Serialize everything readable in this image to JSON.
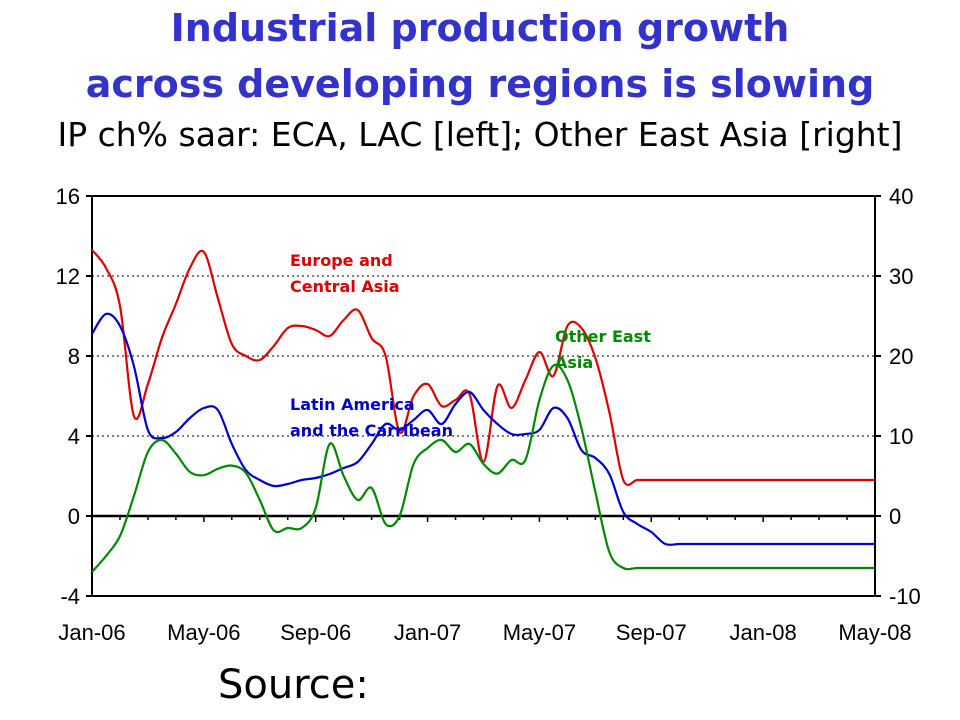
{
  "title_line1": "Industrial production growth",
  "title_line2": "across developing regions is slowing",
  "subtitle": "IP ch% saar: ECA, LAC [left]; Other East Asia [right]",
  "source": "Source:",
  "chart_data": {
    "type": "line",
    "x_ticks": [
      "Jan-06",
      "May-06",
      "Sep-06",
      "Jan-07",
      "May-07",
      "Sep-07",
      "Jan-08",
      "May-08"
    ],
    "y_left_ticks": [
      "16",
      "12",
      "8",
      "4",
      "0",
      "-4"
    ],
    "y_right_ticks": [
      "40",
      "30",
      "20",
      "10",
      "0",
      "-10"
    ],
    "y_left_range": [
      -4,
      16
    ],
    "y_right_range": [
      -10,
      40
    ],
    "grid": "horizontal dotted",
    "series": [
      {
        "name": "Europe and Central Asia",
        "label_lines": [
          "Europe and",
          "Central Asia"
        ],
        "axis": "left",
        "color": "#dd0000",
        "x": [
          0,
          0.5,
          1,
          1.5,
          2,
          2.5,
          3,
          3.5,
          4,
          4.5,
          5,
          5.5,
          6,
          6.5,
          7,
          7.5,
          8,
          8.5,
          9,
          9.5,
          10,
          10.5,
          11,
          11.5,
          12,
          12.5,
          13,
          13.5,
          14,
          14.5,
          15,
          15.5,
          16,
          16.5,
          17,
          17.5,
          18,
          18.5,
          19,
          19.5,
          20,
          20.5,
          21,
          21.5,
          22,
          22.5,
          23,
          23.5,
          24,
          24.5,
          25,
          25.5,
          26,
          26.5,
          27,
          27.5,
          28
        ],
        "y": [
          13.3,
          12.4,
          10.5,
          5.0,
          6.6,
          8.9,
          10.6,
          12.4,
          13.2,
          10.9,
          8.6,
          8.0,
          7.8,
          8.5,
          9.4,
          9.5,
          9.3,
          9.0,
          9.8,
          10.3,
          8.9,
          8.0,
          4.2,
          6.0,
          6.6,
          5.5,
          5.8,
          6.1,
          2.7,
          6.5,
          5.4,
          6.8,
          8.2,
          7.0,
          9.5,
          9.4,
          7.9,
          5.2,
          1.8,
          1.8,
          1.8,
          1.8,
          1.8,
          1.8,
          1.8,
          1.8,
          1.8,
          1.8,
          1.8,
          1.8,
          1.8,
          1.8,
          1.8,
          1.8,
          1.8,
          1.8,
          1.8
        ]
      },
      {
        "name": "Latin America and the Carribean",
        "label_lines": [
          "Latin America",
          "and the Carribean"
        ],
        "axis": "left",
        "color": "#0000cc",
        "x": [
          0,
          0.5,
          1,
          1.5,
          2,
          2.5,
          3,
          3.5,
          4,
          4.5,
          5,
          5.5,
          6,
          6.5,
          7,
          7.5,
          8,
          8.5,
          9,
          9.5,
          10,
          10.5,
          11,
          11.5,
          12,
          12.5,
          13,
          13.5,
          14,
          14.5,
          15,
          15.5,
          16,
          16.5,
          17,
          17.5,
          18,
          18.5,
          19,
          19.5,
          20,
          20.5,
          21,
          21.5,
          22,
          22.5,
          23,
          23.5,
          24,
          24.5,
          25,
          25.5,
          26,
          26.5,
          27,
          27.5,
          28
        ],
        "y": [
          9.1,
          10.1,
          9.5,
          7.5,
          4.3,
          3.9,
          4.2,
          4.9,
          5.4,
          5.3,
          3.6,
          2.3,
          1.8,
          1.5,
          1.6,
          1.8,
          1.9,
          2.1,
          2.4,
          2.7,
          3.6,
          4.6,
          4.3,
          4.8,
          5.3,
          4.6,
          5.6,
          6.2,
          5.3,
          4.6,
          4.1,
          4.1,
          4.3,
          5.4,
          4.9,
          3.3,
          2.9,
          2.1,
          0.2,
          -0.4,
          -0.8,
          -1.4,
          -1.4,
          -1.4,
          -1.4,
          -1.4,
          -1.4,
          -1.4,
          -1.4,
          -1.4,
          -1.4,
          -1.4,
          -1.4,
          -1.4,
          -1.4,
          -1.4,
          -1.4
        ]
      },
      {
        "name": "Other East Asia",
        "label_lines": [
          "Other East",
          "Asia"
        ],
        "axis": "right",
        "color": "#008800",
        "x": [
          0,
          0.5,
          1,
          1.5,
          2,
          2.5,
          3,
          3.5,
          4,
          4.5,
          5,
          5.5,
          6,
          6.5,
          7,
          7.5,
          8,
          8.5,
          9,
          9.5,
          10,
          10.5,
          11,
          11.5,
          12,
          12.5,
          13,
          13.5,
          14,
          14.5,
          15,
          15.5,
          16,
          16.5,
          17,
          17.5,
          18,
          18.5,
          19,
          19.5,
          20,
          20.5,
          21,
          21.5,
          22,
          22.5,
          23,
          23.5,
          24,
          24.5,
          25,
          25.5,
          26,
          26.5,
          27,
          27.5,
          28
        ],
        "y": [
          -7,
          -5.0,
          -2.5,
          2.5,
          8.0,
          9.5,
          7.8,
          5.5,
          5.1,
          5.9,
          6.3,
          5.4,
          2.0,
          -1.8,
          -1.5,
          -1.5,
          1.0,
          9.0,
          5.0,
          2.0,
          3.5,
          -1.0,
          0.0,
          6.5,
          8.5,
          9.5,
          8.0,
          9.0,
          6.5,
          5.3,
          7.0,
          7.0,
          14.5,
          18.8,
          17.0,
          11.0,
          3.0,
          -4.5,
          -6.5,
          -6.5,
          -6.5,
          -6.5,
          -6.5,
          -6.5,
          -6.5,
          -6.5,
          -6.5,
          -6.5,
          -6.5,
          -6.5,
          -6.5,
          -6.5,
          -6.5,
          -6.5,
          -6.5,
          -6.5,
          -6.5
        ]
      }
    ]
  }
}
